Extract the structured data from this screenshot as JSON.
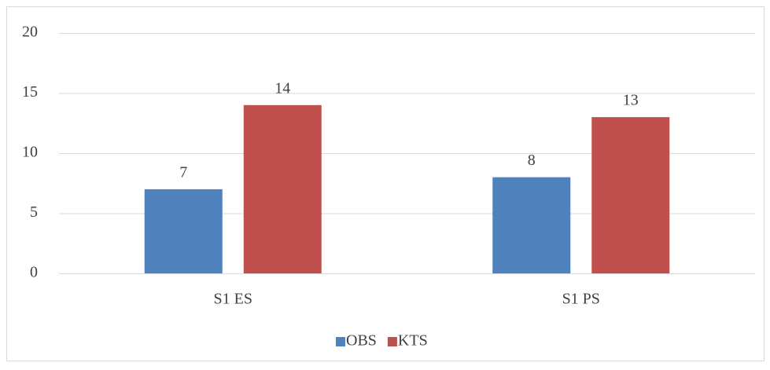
{
  "chart_data": {
    "type": "bar",
    "categories": [
      "S1 ES",
      "S1 PS"
    ],
    "series": [
      {
        "name": "OBS",
        "color": "#4f81bd",
        "values": [
          7,
          8
        ]
      },
      {
        "name": "KTS",
        "color": "#c0504d",
        "values": [
          14,
          13
        ]
      }
    ],
    "ylim": [
      0,
      20
    ],
    "yticks": [
      0,
      5,
      10,
      15,
      20
    ],
    "grid": true,
    "legend": "bottom",
    "data_labels": true
  }
}
